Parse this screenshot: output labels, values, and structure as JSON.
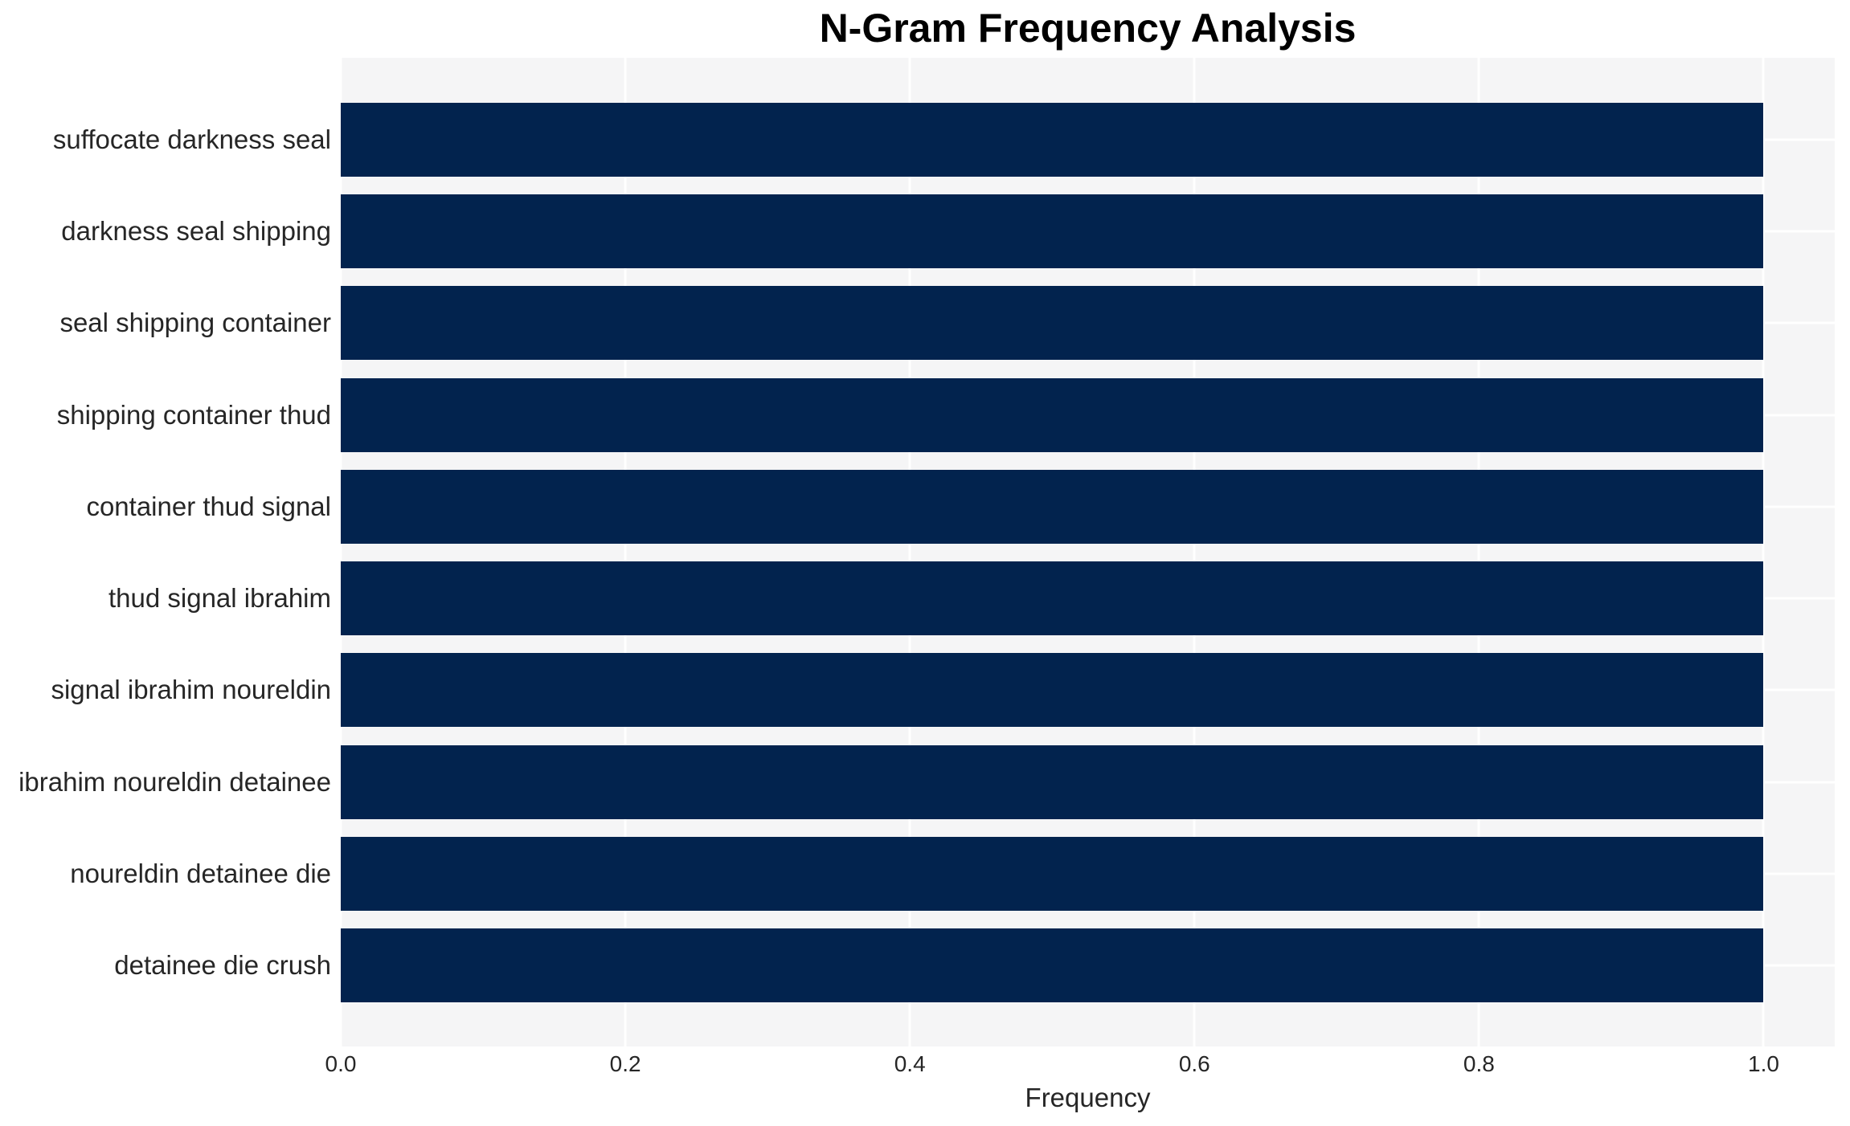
{
  "chart_data": {
    "type": "bar",
    "orientation": "horizontal",
    "title": "N-Gram Frequency Analysis",
    "xlabel": "Frequency",
    "ylabel": "",
    "categories": [
      "suffocate darkness seal",
      "darkness seal shipping",
      "seal shipping container",
      "shipping container thud",
      "container thud signal",
      "thud signal ibrahim",
      "signal ibrahim noureldin",
      "ibrahim noureldin detainee",
      "noureldin detainee die",
      "detainee die crush"
    ],
    "values": [
      1.0,
      1.0,
      1.0,
      1.0,
      1.0,
      1.0,
      1.0,
      1.0,
      1.0,
      1.0
    ],
    "x_ticks": [
      {
        "value": 0.0,
        "label": "0.0"
      },
      {
        "value": 0.2,
        "label": "0.2"
      },
      {
        "value": 0.4,
        "label": "0.4"
      },
      {
        "value": 0.6,
        "label": "0.6"
      },
      {
        "value": 0.8,
        "label": "0.8"
      },
      {
        "value": 1.0,
        "label": "1.0"
      }
    ],
    "xlim": [
      0.0,
      1.05
    ],
    "grid": true,
    "legend_position": "none",
    "colors": {
      "bar": "#02234e",
      "plot_background": "#f5f5f6",
      "gridline": "#ffffff",
      "title_text": "#000000",
      "axis_text": "#262626",
      "figure_background": "#ffffff"
    }
  }
}
